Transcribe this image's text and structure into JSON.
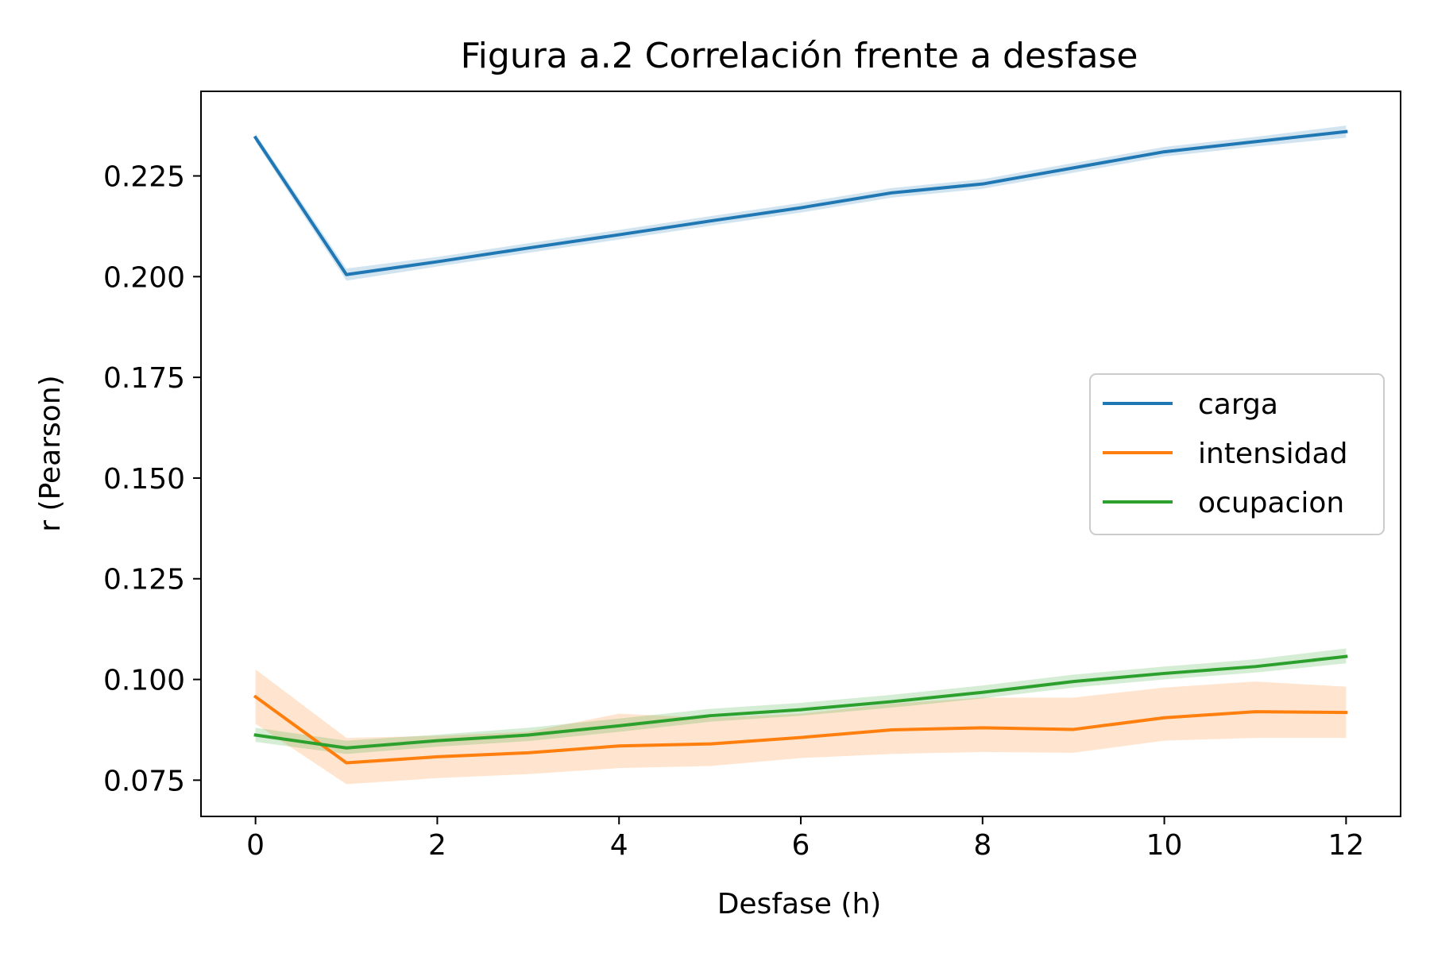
{
  "chart_data": {
    "type": "line",
    "title": "Figura a.2  Correlación frente a desfase",
    "xlabel": "Desfase (h)",
    "ylabel": "r (Pearson)",
    "xlim": [
      -0.6,
      12.6
    ],
    "ylim": [
      0.066,
      0.246
    ],
    "xticks": [
      0,
      2,
      4,
      6,
      8,
      10,
      12
    ],
    "xtick_labels": [
      "0",
      "2",
      "4",
      "6",
      "8",
      "10",
      "12"
    ],
    "yticks": [
      0.075,
      0.1,
      0.125,
      0.15,
      0.175,
      0.2,
      0.225
    ],
    "ytick_labels": [
      "0.075",
      "0.100",
      "0.125",
      "0.150",
      "0.175",
      "0.200",
      "0.225"
    ],
    "grid": false,
    "legend_position": "center-right",
    "x": [
      0,
      1,
      2,
      3,
      4,
      5,
      6,
      7,
      8,
      9,
      10,
      11,
      12
    ],
    "series": [
      {
        "name": "carga",
        "color": "#1f77b4",
        "values": [
          0.2345,
          0.2005,
          0.2037,
          0.2071,
          0.2104,
          0.2138,
          0.2171,
          0.2208,
          0.223,
          0.227,
          0.231,
          0.2335,
          0.236
        ],
        "lower": [
          0.2335,
          0.199,
          0.2025,
          0.2059,
          0.2092,
          0.2126,
          0.2159,
          0.2196,
          0.2218,
          0.2258,
          0.2298,
          0.2323,
          0.2345
        ],
        "upper": [
          0.2355,
          0.202,
          0.2049,
          0.2083,
          0.2116,
          0.215,
          0.2183,
          0.222,
          0.2242,
          0.2282,
          0.2322,
          0.2347,
          0.2375
        ]
      },
      {
        "name": "intensidad",
        "color": "#ff7f0e",
        "values": [
          0.0957,
          0.0793,
          0.0808,
          0.0818,
          0.0835,
          0.084,
          0.0856,
          0.0875,
          0.088,
          0.0876,
          0.0905,
          0.092,
          0.0918
        ],
        "lower": [
          0.089,
          0.074,
          0.0755,
          0.0765,
          0.078,
          0.0785,
          0.0805,
          0.0815,
          0.082,
          0.0818,
          0.0848,
          0.0855,
          0.0855
        ],
        "upper": [
          0.1025,
          0.0855,
          0.086,
          0.087,
          0.0915,
          0.0905,
          0.0915,
          0.094,
          0.0955,
          0.0955,
          0.098,
          0.0995,
          0.0982
        ]
      },
      {
        "name": "ocupacion",
        "color": "#2ca02c",
        "values": [
          0.0862,
          0.083,
          0.0848,
          0.0862,
          0.0885,
          0.091,
          0.0925,
          0.0945,
          0.0968,
          0.0995,
          0.1015,
          0.1032,
          0.1057
        ],
        "lower": [
          0.0845,
          0.0815,
          0.0833,
          0.0847,
          0.087,
          0.0895,
          0.091,
          0.093,
          0.0953,
          0.098,
          0.1,
          0.1017,
          0.104
        ],
        "upper": [
          0.088,
          0.0848,
          0.0863,
          0.088,
          0.0903,
          0.0927,
          0.0942,
          0.0962,
          0.0985,
          0.1012,
          0.1032,
          0.105,
          0.1077
        ]
      }
    ]
  }
}
